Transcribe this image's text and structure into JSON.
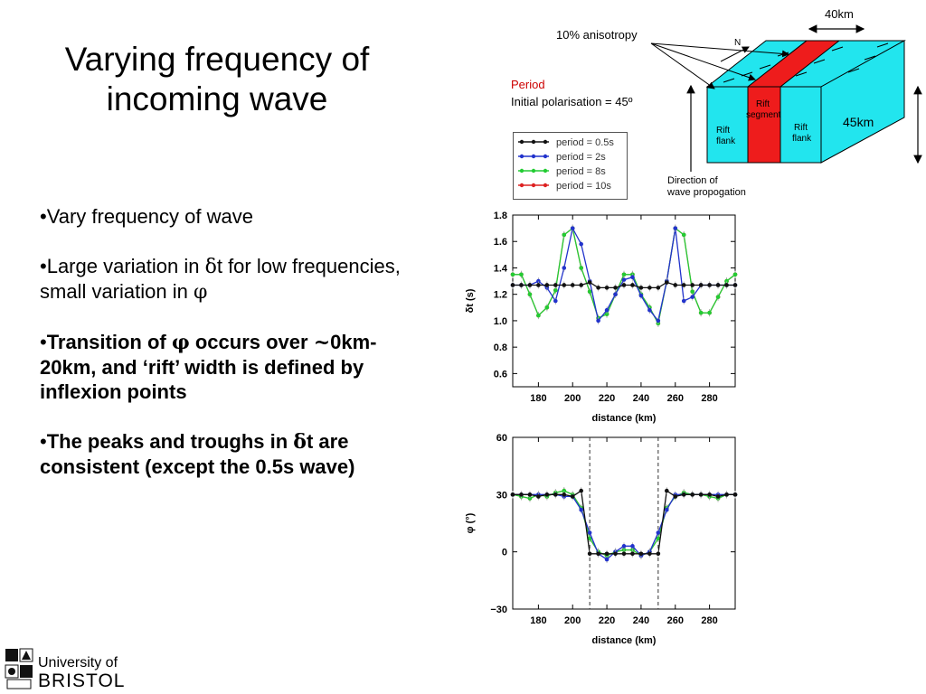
{
  "slide": {
    "title_line1": "Varying frequency of",
    "title_line2": "incoming wave",
    "bullets": {
      "b1": "•Vary frequency of wave",
      "b2_a": "•Large variation in ",
      "b2_delta": "δ",
      "b2_b": "t for low frequencies, small variation in ",
      "b2_phi": "φ",
      "b3_a": "•",
      "b3_b": "Transition of ",
      "b3_phi": "φ",
      "b3_c": " occurs over ",
      "b3_tilde": "~",
      "b3_d": "0km-20km, and ‘rift’ width is defined by inflexion points",
      "b4_a": "•",
      "b4_b": "The peaks and troughs in ",
      "b4_delta": "δ",
      "b4_c": "t are consistent (except the 0.5s wave)"
    }
  },
  "diagram": {
    "width_label": "40km",
    "anisotropy_label": "10% anisotropy",
    "north_label": "N",
    "period_label": "Period",
    "polarisation_label": "Initial polarisation = 45º",
    "depth_label": "45km",
    "rift_flank_left": [
      "Rift",
      "flank"
    ],
    "rift_segment": [
      "Rift",
      "segment"
    ],
    "rift_flank_right": [
      "Rift",
      "flank"
    ],
    "direction_label": [
      "Direction of",
      "wave propogation"
    ],
    "colors": {
      "flank": "#22e5ee",
      "rift": "#ee1c1c",
      "edge": "#000000"
    }
  },
  "legend": {
    "entries": [
      {
        "label": "period = 0.5s",
        "color": "#111111"
      },
      {
        "label": "period = 2s",
        "color": "#2233cc"
      },
      {
        "label": "period = 8s",
        "color": "#22cc33"
      },
      {
        "label": "period = 10s",
        "color": "#dd2222"
      }
    ]
  },
  "chart_data": [
    {
      "type": "line",
      "ylabel": "δt (s)",
      "xlabel": "distance (km)",
      "xlim": [
        165,
        295
      ],
      "ylim": [
        0.5,
        1.8
      ],
      "xticks": [
        180,
        200,
        220,
        240,
        260,
        280
      ],
      "yticks": [
        0.6,
        0.8,
        1.0,
        1.2,
        1.4,
        1.6,
        1.8
      ],
      "x": [
        165,
        170,
        175,
        180,
        185,
        190,
        195,
        200,
        205,
        210,
        215,
        220,
        225,
        230,
        235,
        240,
        245,
        250,
        255,
        260,
        265,
        270,
        275,
        280,
        285,
        290,
        295
      ],
      "series": [
        {
          "name": "period = 0.5s",
          "color": "#111111",
          "values": [
            1.27,
            1.27,
            1.27,
            1.27,
            1.27,
            1.27,
            1.27,
            1.27,
            1.27,
            1.29,
            1.25,
            1.25,
            1.25,
            1.27,
            1.27,
            1.25,
            1.25,
            1.25,
            1.29,
            1.27,
            1.27,
            1.27,
            1.27,
            1.27,
            1.27,
            1.27,
            1.27
          ]
        },
        {
          "name": "period = 2s",
          "color": "#2233cc",
          "values": [
            1.27,
            1.27,
            1.27,
            1.3,
            1.25,
            1.15,
            1.4,
            1.7,
            1.58,
            1.3,
            1.0,
            1.08,
            1.2,
            1.31,
            1.33,
            1.19,
            1.08,
            1.0,
            1.3,
            1.7,
            1.15,
            1.18,
            1.27,
            1.27,
            1.27,
            1.27,
            1.27
          ]
        },
        {
          "name": "period = 8s",
          "color": "#22cc33",
          "values": [
            1.35,
            1.35,
            1.2,
            1.04,
            1.1,
            1.23,
            1.65,
            1.7,
            1.4,
            1.22,
            1.02,
            1.05,
            1.2,
            1.35,
            1.35,
            1.2,
            1.1,
            0.98,
            1.3,
            1.7,
            1.65,
            1.22,
            1.06,
            1.06,
            1.18,
            1.3,
            1.35
          ]
        },
        {
          "name": "period = 10s",
          "color": "#dd2222",
          "values": [
            1.35,
            1.35,
            1.2,
            1.04,
            1.1,
            1.23,
            1.65,
            1.7,
            1.4,
            1.22,
            1.02,
            1.05,
            1.2,
            1.35,
            1.35,
            1.2,
            1.1,
            0.98,
            1.3,
            1.7,
            1.65,
            1.22,
            1.06,
            1.06,
            1.18,
            1.3,
            1.35
          ]
        }
      ]
    },
    {
      "type": "line",
      "ylabel": "φ (°)",
      "xlabel": "distance (km)",
      "xlim": [
        165,
        295
      ],
      "ylim": [
        -30,
        60
      ],
      "xticks": [
        180,
        200,
        220,
        240,
        260,
        280
      ],
      "yticks": [
        -30,
        0,
        30,
        60
      ],
      "vlines": [
        210,
        250
      ],
      "x": [
        165,
        170,
        175,
        180,
        185,
        190,
        195,
        200,
        205,
        210,
        215,
        220,
        225,
        230,
        235,
        240,
        245,
        250,
        255,
        260,
        265,
        270,
        275,
        280,
        285,
        290,
        295
      ],
      "series": [
        {
          "name": "period = 0.5s",
          "color": "#111111",
          "values": [
            30,
            30,
            30,
            29,
            30,
            30,
            30,
            29,
            32,
            -1,
            -1,
            -1,
            -1,
            -1,
            -1,
            -1,
            -1,
            -1,
            32,
            29,
            30,
            30,
            30,
            30,
            29,
            30,
            30
          ]
        },
        {
          "name": "period = 2s",
          "color": "#2233cc",
          "values": [
            30,
            30,
            30,
            30,
            30,
            30,
            29,
            29,
            22,
            10,
            -1,
            -4,
            0,
            3,
            3,
            -2,
            0,
            10,
            22,
            30,
            30,
            30,
            30,
            30,
            30,
            30,
            30
          ]
        },
        {
          "name": "period = 8s",
          "color": "#22cc33",
          "values": [
            30,
            29,
            28,
            30,
            29,
            31,
            32,
            30,
            23,
            7,
            0,
            -2,
            0,
            1,
            1,
            -2,
            0,
            7,
            23,
            29,
            31,
            30,
            30,
            29,
            28,
            30,
            30
          ]
        },
        {
          "name": "period = 10s",
          "color": "#dd2222",
          "values": [
            30,
            29,
            28,
            30,
            29,
            31,
            32,
            30,
            23,
            7,
            0,
            -2,
            0,
            1,
            1,
            -2,
            0,
            7,
            23,
            29,
            31,
            30,
            30,
            29,
            28,
            30,
            30
          ]
        }
      ]
    }
  ],
  "logo": {
    "line1": "University of",
    "line2": "BRISTOL"
  }
}
